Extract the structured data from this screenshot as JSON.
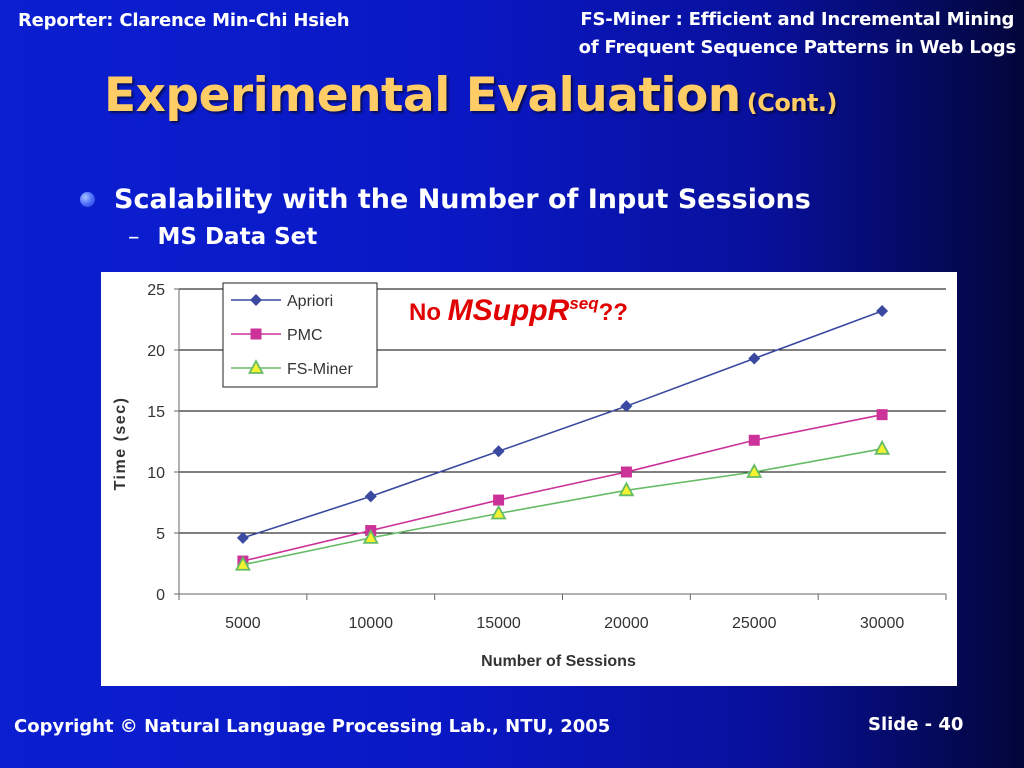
{
  "header": {
    "reporter": "Reporter: Clarence Min-Chi Hsieh",
    "paper_title_line1": "FS-Miner : Efficient and Incremental Mining",
    "paper_title_line2": "of Frequent Sequence Patterns in Web Logs"
  },
  "slide": {
    "title": "Experimental Evaluation",
    "title_suffix": "(Cont.)",
    "bullet": "Scalability with the Number of Input Sessions",
    "sub_bullet": "MS Data Set",
    "sub_bullet_dash": "–"
  },
  "annotation": {
    "prefix": "No ",
    "name": "MSuppR",
    "superscript": "seq",
    "suffix": "??",
    "color": "#e00000"
  },
  "footer": {
    "copyright": "Copyright © Natural Language Processing Lab., NTU,  2005",
    "slide_label": "Slide - 40"
  },
  "colors": {
    "title": "#ffcc66",
    "apriori": "#3b4aa0",
    "pmc": "#cc3399",
    "fsminer": "#66bb66",
    "fsminer_fill": "#f2f230"
  },
  "chart_data": {
    "type": "line",
    "xlabel": "Number of Sessions",
    "ylabel": "Time (sec)",
    "categories": [
      "5000",
      "10000",
      "15000",
      "20000",
      "25000",
      "30000"
    ],
    "ylim": [
      0,
      25
    ],
    "yticks": [
      "0",
      "5",
      "10",
      "15",
      "20",
      "25"
    ],
    "grid": true,
    "legend": "top-left",
    "series": [
      {
        "name": "Apriori",
        "marker": "diamond",
        "color": "#3b4aa0",
        "values": [
          4.6,
          8.0,
          11.7,
          15.4,
          19.3,
          23.2
        ]
      },
      {
        "name": "PMC",
        "marker": "square",
        "color": "#cc3399",
        "values": [
          2.7,
          5.2,
          7.7,
          10.0,
          12.6,
          14.7
        ]
      },
      {
        "name": "FS-Miner",
        "marker": "triangle",
        "color": "#66bb66",
        "values": [
          2.4,
          4.6,
          6.6,
          8.5,
          10.0,
          11.9
        ]
      }
    ]
  }
}
